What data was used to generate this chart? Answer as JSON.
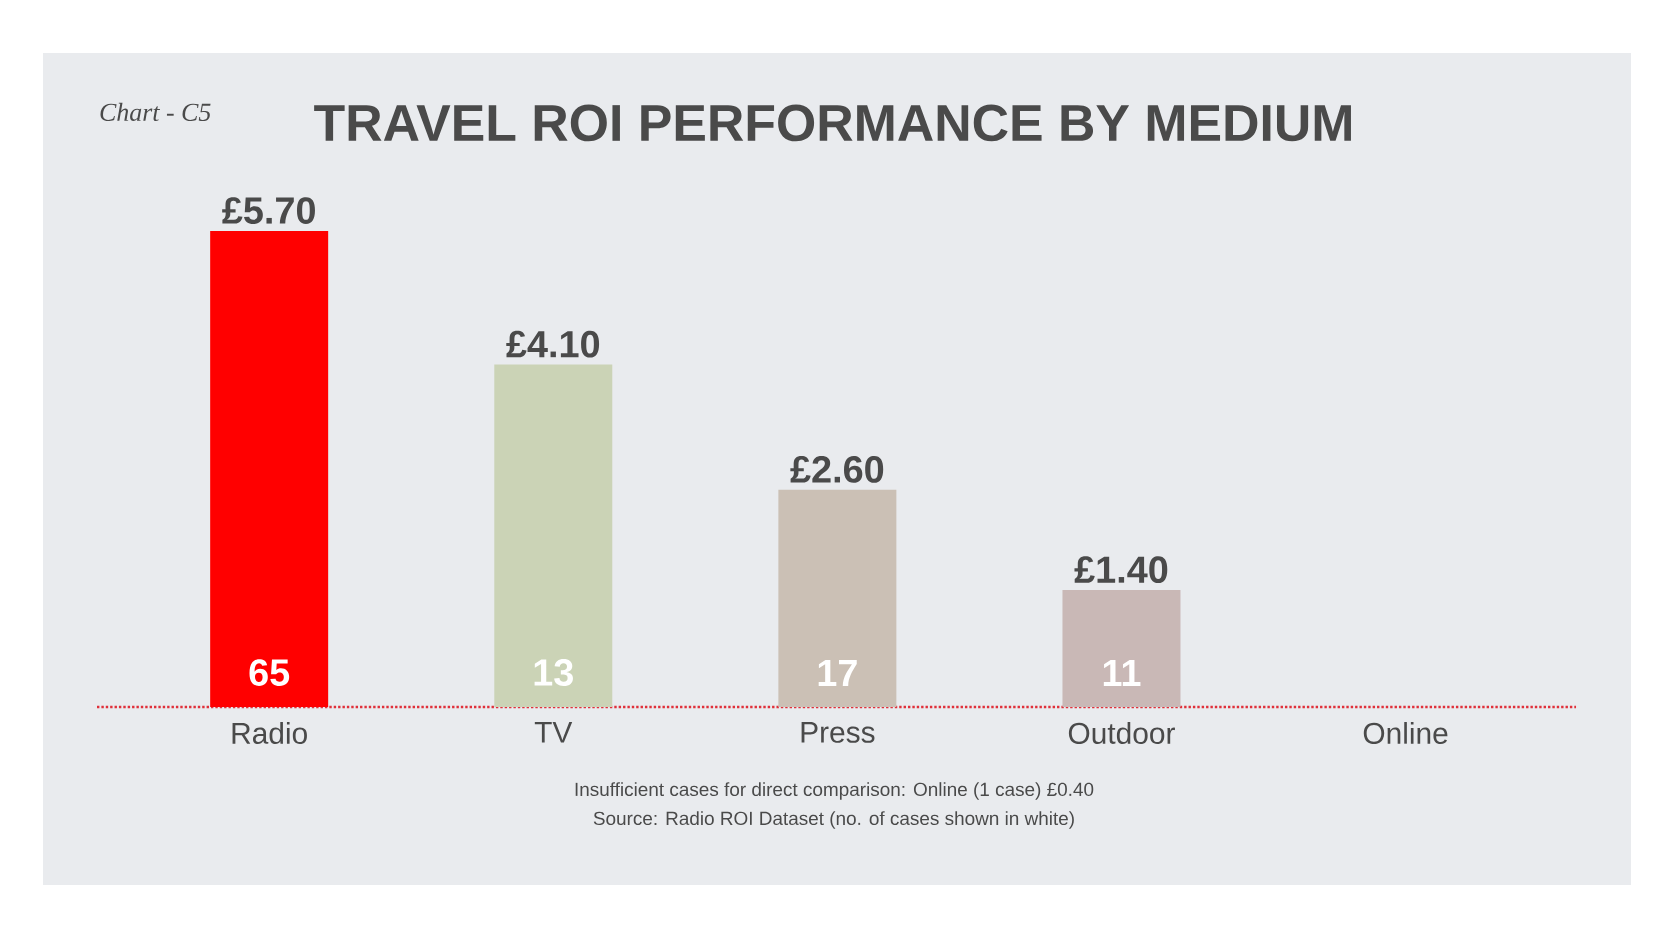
{
  "chart_data": {
    "type": "bar",
    "title": "TRAVEL ROI PERFORMANCE BY MEDIUM",
    "categories": [
      "Radio",
      "TV",
      "Press",
      "Outdoor",
      "Online"
    ],
    "values": [
      5.7,
      4.1,
      2.6,
      1.4,
      null
    ],
    "value_labels": [
      "£5.70",
      "£4.10",
      "£2.60",
      "£1.40",
      null
    ],
    "colors": [
      "#ff0000",
      "#cbd3b6",
      "#cbc0b5",
      "#c9b8b6",
      null
    ],
    "annotations": [
      "Chart - C5",
      {
        "text": "65",
        "x": "Radio",
        "y": 0
      },
      {
        "text": "13",
        "x": "TV",
        "y": 0
      },
      {
        "text": "17",
        "x": "Press",
        "y": 0
      },
      {
        "text": "11",
        "x": "Outdoor",
        "y": 0
      },
      "Insufficient cases for direct comparison: Online (1 case) £0.40",
      "Source: Radio ROI Dataset (no. of cases shown in white)"
    ]
  }
}
